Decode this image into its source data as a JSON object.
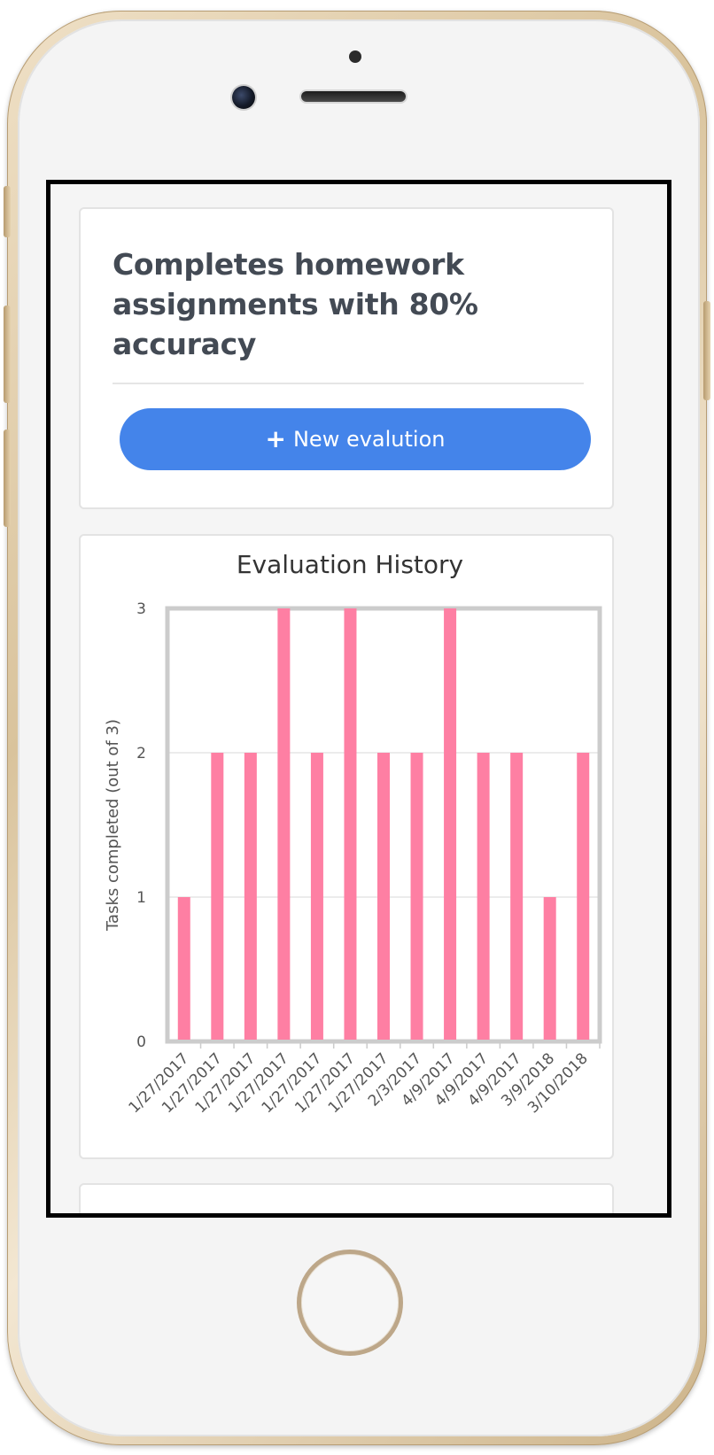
{
  "device": {
    "type": "iphone"
  },
  "goal": {
    "title": "Completes homework assignments with 80% accuracy",
    "new_evaluation_label": "New evalution",
    "new_evaluation_icon": "plus-icon"
  },
  "colors": {
    "accent": "#4484ea",
    "bar": "#fe7fa3",
    "title_text": "#434a54"
  },
  "chart_data": {
    "type": "bar",
    "title": "Evaluation History",
    "ylabel": "Tasks completed (out of 3)",
    "xlabel": "",
    "ylim": [
      0,
      3
    ],
    "yticks": [
      0,
      1,
      2,
      3
    ],
    "grid": true,
    "categories": [
      "1/27/2017",
      "1/27/2017",
      "1/27/2017",
      "1/27/2017",
      "1/27/2017",
      "1/27/2017",
      "1/27/2017",
      "2/3/2017",
      "4/9/2017",
      "4/9/2017",
      "4/9/2017",
      "3/9/2018",
      "3/10/2018"
    ],
    "values": [
      1,
      2,
      2,
      3,
      2,
      3,
      2,
      2,
      3,
      2,
      2,
      1,
      2
    ]
  }
}
